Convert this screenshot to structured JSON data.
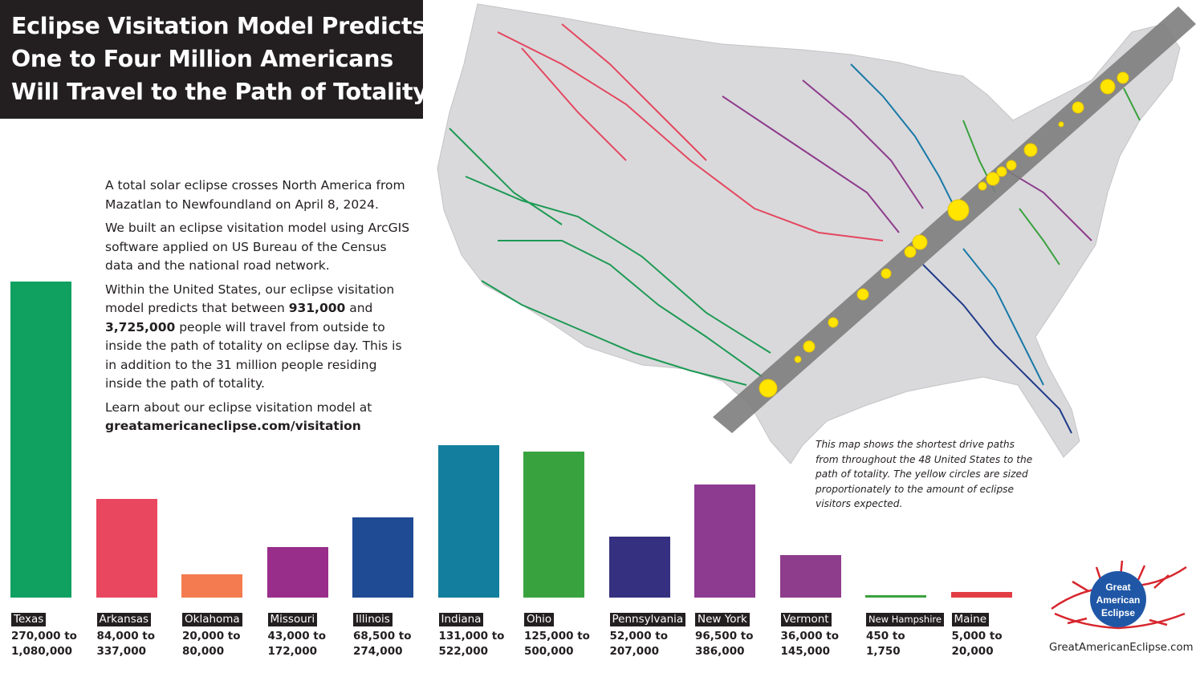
{
  "title": {
    "lines": [
      "Eclipse Visitation Model Predicts",
      "One to Four Million Americans",
      "Will Travel to the Path of Totality"
    ]
  },
  "description": {
    "p1": "A total solar eclipse crosses North America from Mazatlan to Newfoundland on April 8, 2024.",
    "p2": "We built an eclipse visitation model using ArcGIS software applied on US Bureau of the Census data and the national road network.",
    "p3_before": "Within the United States, our eclipse visitation model predicts that between ",
    "p3_low": "931,000",
    "p3_mid": " and ",
    "p3_high": "3,725,000",
    "p3_after": " people will travel from outside to inside the path of totality on eclipse day. This is in addition to the 31 million people residing inside the path of totality.",
    "p4": "Learn about our eclipse visitation model at",
    "link": "greatamericaneclipse.com/visitation"
  },
  "map_note": "This map shows the shortest drive paths from throughout the 48 United States to the path of totality. The yellow circles are sized proportionately to the amount of eclipse visitors expected.",
  "logo": {
    "lines": [
      "Great",
      "American",
      "Eclipse"
    ],
    "url": "GreatAmericanEclipse.com",
    "red": "#d7262e",
    "blue": "#1f57a6"
  },
  "colors": {
    "title_bg": "#231f20",
    "map_land": "#d9d9db",
    "path_band": "#7d7d7d",
    "visitor_circle": "#ffe500"
  },
  "chart_data": {
    "type": "bar",
    "value_basis": "upper estimate of visitors",
    "categories": [
      "Texas",
      "Arkansas",
      "Oklahoma",
      "Missouri",
      "Illinois",
      "Indiana",
      "Ohio",
      "Pennsylvania",
      "New York",
      "Vermont",
      "New Hampshire",
      "Maine"
    ],
    "values": [
      1080000,
      337000,
      80000,
      172000,
      274000,
      522000,
      500000,
      207000,
      386000,
      145000,
      1750,
      20000
    ],
    "ranges": [
      [
        "270,000 to",
        "1,080,000"
      ],
      [
        "84,000 to",
        "337,000"
      ],
      [
        "20,000 to",
        "80,000"
      ],
      [
        "43,000 to",
        "172,000"
      ],
      [
        "68,500 to",
        "274,000"
      ],
      [
        "131,000 to",
        "522,000"
      ],
      [
        "125,000 to",
        "500,000"
      ],
      [
        "52,000 to",
        "207,000"
      ],
      [
        "96,500 to",
        "386,000"
      ],
      [
        "36,000 to",
        "145,000"
      ],
      [
        "450 to",
        "1,750"
      ],
      [
        "5,000 to",
        "20,000"
      ]
    ],
    "colors": [
      "#10a060",
      "#e8475f",
      "#f47b4f",
      "#992d8a",
      "#1f4a94",
      "#137e9e",
      "#38a33e",
      "#35307f",
      "#8d3a91",
      "#8e3c8c",
      "#3aa13d",
      "#e23d44"
    ],
    "ylim": [
      0,
      1080000
    ],
    "grid": false,
    "legend": "none"
  }
}
